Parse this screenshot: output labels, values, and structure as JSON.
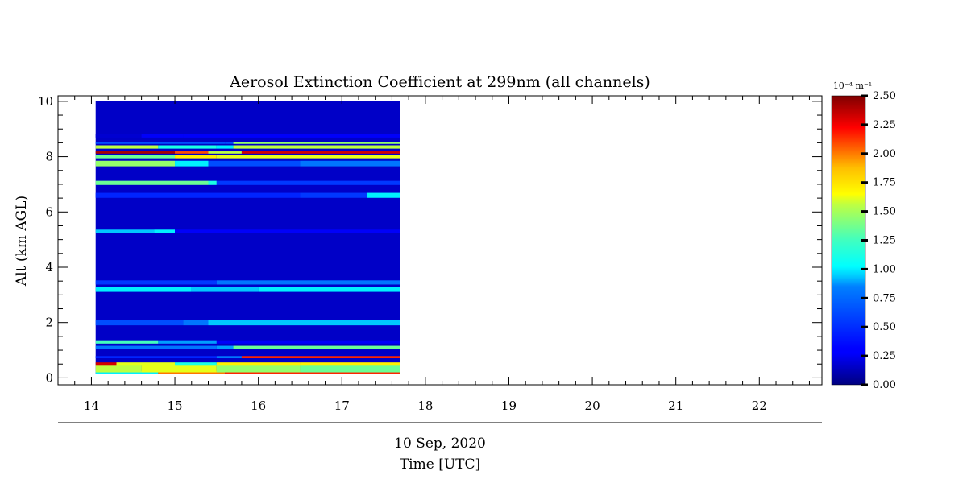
{
  "chart_data": {
    "type": "heatmap",
    "title": "Aerosol Extinction Coefficient at 299nm (all channels)",
    "xlabel": "Time [UTC]",
    "x_date_label": "10 Sep, 2020",
    "ylabel": "Alt (km AGL)",
    "xlim": [
      13.6,
      22.75
    ],
    "ylim": [
      -0.25,
      10.2
    ],
    "x_ticks": [
      "14",
      "15",
      "16",
      "17",
      "18",
      "19",
      "20",
      "21",
      "22"
    ],
    "y_ticks": [
      "0",
      "2",
      "4",
      "6",
      "8",
      "10"
    ],
    "data_extent": {
      "x": [
        14.05,
        17.7
      ],
      "y": [
        0.15,
        10.0
      ]
    },
    "colorbar": {
      "unit_label": "10⁻⁴ m⁻¹",
      "range": [
        0.0,
        2.5
      ],
      "ticks": [
        "0.00",
        "0.25",
        "0.50",
        "0.75",
        "1.00",
        "1.25",
        "1.50",
        "1.75",
        "2.00",
        "2.25",
        "2.50"
      ],
      "colormap": "jet"
    },
    "layers": [
      {
        "alt": 0.2,
        "thickness": 0.1,
        "segments": [
          [
            14.05,
            0.9
          ],
          [
            14.8,
            1.9
          ],
          [
            15.6,
            2.1
          ],
          [
            17.7,
            2.1
          ]
        ]
      },
      {
        "alt": 0.35,
        "thickness": 0.3,
        "segments": [
          [
            14.05,
            1.4
          ],
          [
            14.6,
            1.5
          ],
          [
            15.5,
            1.3
          ],
          [
            16.5,
            1.2
          ],
          [
            17.7,
            1.1
          ]
        ]
      },
      {
        "alt": 0.5,
        "thickness": 0.12,
        "segments": [
          [
            14.05,
            2.3
          ],
          [
            14.3,
            1.5
          ],
          [
            15.0,
            1.0
          ],
          [
            15.5,
            1.6
          ],
          [
            16.5,
            1.6
          ],
          [
            17.7,
            1.7
          ]
        ]
      },
      {
        "alt": 0.75,
        "thickness": 0.08,
        "segments": [
          [
            14.05,
            0.4
          ],
          [
            15.5,
            0.6
          ],
          [
            15.8,
            2.1
          ],
          [
            17.7,
            2.0
          ]
        ]
      },
      {
        "alt": 1.1,
        "thickness": 0.12,
        "segments": [
          [
            14.05,
            0.6
          ],
          [
            15.5,
            0.7
          ],
          [
            15.7,
            1.2
          ],
          [
            17.7,
            1.4
          ]
        ]
      },
      {
        "alt": 1.3,
        "thickness": 0.12,
        "segments": [
          [
            14.05,
            1.1
          ],
          [
            14.8,
            0.7
          ],
          [
            15.5,
            0.3
          ],
          [
            17.7,
            0.45
          ]
        ]
      },
      {
        "alt": 2.0,
        "thickness": 0.2,
        "segments": [
          [
            14.05,
            0.5
          ],
          [
            15.1,
            0.6
          ],
          [
            15.4,
            0.8
          ],
          [
            17.7,
            0.6
          ]
        ]
      },
      {
        "alt": 3.2,
        "thickness": 0.18,
        "segments": [
          [
            14.05,
            0.9
          ],
          [
            15.2,
            0.8
          ],
          [
            16.0,
            0.9
          ],
          [
            17.7,
            0.95
          ]
        ]
      },
      {
        "alt": 3.45,
        "thickness": 0.15,
        "segments": [
          [
            14.05,
            0.45
          ],
          [
            15.5,
            0.6
          ],
          [
            17.7,
            0.7
          ]
        ]
      },
      {
        "alt": 5.3,
        "thickness": 0.12,
        "segments": [
          [
            14.05,
            0.8
          ],
          [
            14.75,
            0.9
          ],
          [
            15.0,
            0.3
          ],
          [
            17.7,
            0.35
          ]
        ]
      },
      {
        "alt": 6.6,
        "thickness": 0.18,
        "segments": [
          [
            14.05,
            0.4
          ],
          [
            16.5,
            0.45
          ],
          [
            17.3,
            0.9
          ],
          [
            17.7,
            1.0
          ]
        ]
      },
      {
        "alt": 7.05,
        "thickness": 0.15,
        "segments": [
          [
            14.05,
            1.2
          ],
          [
            15.4,
            1.0
          ],
          [
            15.5,
            0.45
          ],
          [
            17.7,
            0.35
          ]
        ]
      },
      {
        "alt": 7.75,
        "thickness": 0.2,
        "segments": [
          [
            14.05,
            1.3
          ],
          [
            15.0,
            0.9
          ],
          [
            15.4,
            0.5
          ],
          [
            16.5,
            0.6
          ],
          [
            17.7,
            0.6
          ]
        ]
      },
      {
        "alt": 8.0,
        "thickness": 0.12,
        "segments": [
          [
            14.05,
            1.2
          ],
          [
            15.0,
            1.6
          ],
          [
            15.5,
            1.5
          ],
          [
            17.7,
            1.6
          ]
        ]
      },
      {
        "alt": 8.15,
        "thickness": 0.08,
        "segments": [
          [
            14.05,
            2.4
          ],
          [
            15.0,
            2.0
          ],
          [
            15.4,
            1.4
          ],
          [
            15.8,
            2.3
          ],
          [
            17.7,
            2.3
          ]
        ]
      },
      {
        "alt": 8.35,
        "thickness": 0.12,
        "segments": [
          [
            14.05,
            1.4
          ],
          [
            14.8,
            1.0
          ],
          [
            15.5,
            0.9
          ],
          [
            15.7,
            1.4
          ],
          [
            17.7,
            1.5
          ]
        ]
      },
      {
        "alt": 8.5,
        "thickness": 0.08,
        "segments": [
          [
            14.05,
            0.5
          ],
          [
            15.6,
            0.5
          ],
          [
            15.7,
            1.3
          ],
          [
            17.7,
            1.4
          ]
        ]
      },
      {
        "alt": 8.75,
        "thickness": 0.12,
        "segments": [
          [
            14.05,
            0.2
          ],
          [
            14.6,
            0.3
          ],
          [
            15.1,
            0.3
          ],
          [
            17.7,
            0.1
          ]
        ]
      }
    ]
  }
}
